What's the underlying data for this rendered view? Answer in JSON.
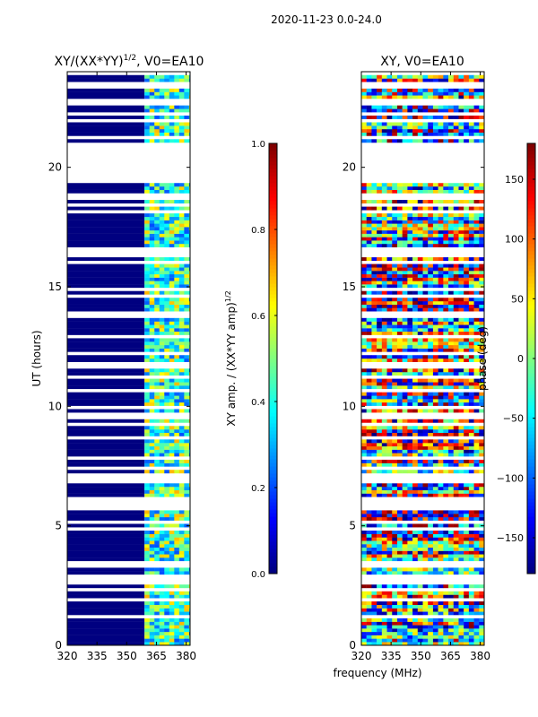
{
  "figure": {
    "suptitle": "2020-11-23 0.0-24.0",
    "xlabel_shared": "frequency (MHz)"
  },
  "chart_data": [
    {
      "type": "heatmap",
      "title_base": "XY/(XX*YY)",
      "title_exponent": "1/2",
      "title_suffix": ", V0=EA10",
      "ylabel": "UT (hours)",
      "xlim": [
        320,
        382
      ],
      "ylim": [
        0,
        24
      ],
      "xticks": [
        320,
        335,
        350,
        365,
        380
      ],
      "yticks": [
        0,
        5,
        10,
        15,
        20
      ],
      "colorbar": {
        "label_base": "XY amp. / (XX*YY amp)",
        "label_exponent": "1/2",
        "range": [
          0.0,
          1.0
        ],
        "ticks": [
          "0.0",
          "0.2",
          "0.4",
          "0.6",
          "0.8",
          "1.0"
        ],
        "colormap": "jet"
      },
      "description_values": {
        "low_band_mhz": [
          320,
          359
        ],
        "low_band_value": 0.0,
        "high_band_mhz": [
          359,
          382
        ],
        "high_band_typical_range": [
          0.2,
          0.7
        ]
      }
    },
    {
      "type": "heatmap",
      "title": "XY, V0=EA10",
      "xlim": [
        320,
        382
      ],
      "ylim": [
        0,
        24
      ],
      "xticks": [
        320,
        335,
        350,
        365,
        380
      ],
      "yticks": [
        0,
        5,
        10,
        15,
        20
      ],
      "colorbar": {
        "label": "phase (deg)",
        "range": [
          -180,
          180
        ],
        "ticks": [
          "−150",
          "−100",
          "−50",
          "0",
          "50",
          "100",
          "150"
        ],
        "tick_values": [
          -150,
          -100,
          -50,
          0,
          50,
          100,
          150
        ],
        "colormap": "jet"
      }
    }
  ],
  "flagged_intervals_ut_hours": [
    [
      20.6,
      19.3
    ],
    [
      24.0,
      23.9
    ],
    [
      23.5,
      23.3
    ],
    [
      22.8,
      22.6
    ],
    [
      21.0,
      20.6
    ],
    [
      9.8,
      9.6
    ],
    [
      6.2,
      5.9
    ],
    [
      2.9,
      2.6
    ],
    [
      18.9,
      18.8
    ],
    [
      14.7,
      14.55
    ]
  ]
}
